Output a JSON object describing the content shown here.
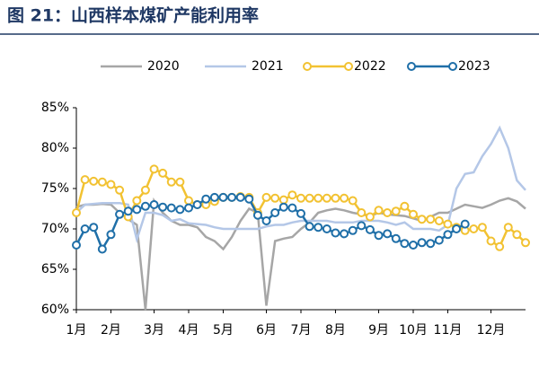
{
  "chart_data": {
    "type": "line",
    "title": "图 21：山西样本煤矿产能利用率",
    "categories": [
      "1月",
      null,
      null,
      null,
      "2月",
      null,
      null,
      null,
      null,
      "3月",
      null,
      null,
      null,
      "4月",
      null,
      null,
      null,
      "5月",
      null,
      null,
      null,
      null,
      "6月",
      null,
      null,
      null,
      "7月",
      null,
      null,
      null,
      "8月",
      null,
      null,
      null,
      null,
      "9月",
      null,
      null,
      null,
      "10月",
      null,
      null,
      null,
      "11月",
      null,
      null,
      null,
      null,
      "12月",
      null,
      null,
      null,
      null
    ],
    "series": [
      {
        "name": "2020",
        "color": "#a6a6a6",
        "marker": false,
        "values": [
          72.7,
          73,
          73,
          73.1,
          73,
          72,
          71.2,
          70.5,
          60,
          73.5,
          72,
          71,
          70.5,
          70.5,
          70.2,
          69,
          68.5,
          67.5,
          69,
          71,
          72.5,
          72,
          60.5,
          68.5,
          68.8,
          69,
          70,
          70.8,
          72,
          72.3,
          72.5,
          72.3,
          72,
          71.8,
          71.6,
          72,
          71.8,
          71.7,
          71.6,
          71.3,
          71,
          71.5,
          72,
          72,
          72.5,
          73,
          72.8,
          72.6,
          73,
          73.5,
          73.8,
          73.4,
          72.5
        ]
      },
      {
        "name": "2021",
        "color": "#b4c7e7",
        "marker": false,
        "values": [
          72,
          73,
          73.1,
          73.2,
          73.2,
          73.2,
          73,
          68.7,
          72,
          72,
          71.7,
          71,
          71.2,
          70.7,
          70.6,
          70.5,
          70.2,
          70,
          70,
          70,
          70,
          70,
          70.3,
          70.5,
          70.5,
          70.8,
          71,
          71,
          71,
          71,
          70.8,
          70.8,
          70.8,
          71,
          71,
          71,
          70.8,
          70.5,
          70.8,
          70,
          70,
          70,
          69.8,
          70.5,
          75,
          76.8,
          77,
          79,
          80.5,
          82.5,
          80,
          76,
          74.8
        ]
      },
      {
        "name": "2022",
        "color": "#f2c232",
        "marker": true,
        "values": [
          72,
          76.1,
          75.9,
          75.8,
          75.5,
          74.8,
          71.5,
          73.5,
          74.8,
          77.4,
          76.9,
          75.8,
          75.8,
          73.5,
          73,
          73,
          73.4,
          73.9,
          73.9,
          74,
          73.9,
          72,
          73.9,
          73.8,
          73.6,
          74.2,
          73.8,
          73.8,
          73.8,
          73.8,
          73.8,
          73.8,
          73.5,
          72,
          71.5,
          72.3,
          72,
          72.2,
          72.8,
          71.8,
          71.2,
          71.2,
          71,
          70.6,
          70.2,
          69.8,
          70,
          70.2,
          68.5,
          67.8,
          70.2,
          69.3,
          68.3
        ]
      },
      {
        "name": "2023",
        "color": "#1f6fa8",
        "marker": true,
        "values": [
          68,
          70,
          70.2,
          67.5,
          69.3,
          71.8,
          72.2,
          72.4,
          72.8,
          73,
          72.7,
          72.6,
          72.4,
          72.6,
          73,
          73.7,
          73.9,
          73.9,
          73.9,
          73.9,
          73.7,
          71.7,
          71,
          72,
          72.7,
          72.6,
          71.9,
          70.3,
          70.2,
          70,
          69.5,
          69.4,
          69.8,
          70.4,
          69.9,
          69.2,
          69.4,
          68.8,
          68.2,
          68,
          68.3,
          68.2,
          68.6,
          69.3,
          70,
          70.6,
          null,
          null,
          null,
          null,
          null,
          null,
          null
        ]
      }
    ],
    "ylim": [
      60,
      85
    ],
    "yticks": [
      {
        "value": 60,
        "label": "60%"
      },
      {
        "value": 65,
        "label": "65%"
      },
      {
        "value": 70,
        "label": "70%"
      },
      {
        "value": 75,
        "label": "75%"
      },
      {
        "value": 80,
        "label": "80%"
      },
      {
        "value": 85,
        "label": "85%"
      }
    ],
    "grid": false
  }
}
